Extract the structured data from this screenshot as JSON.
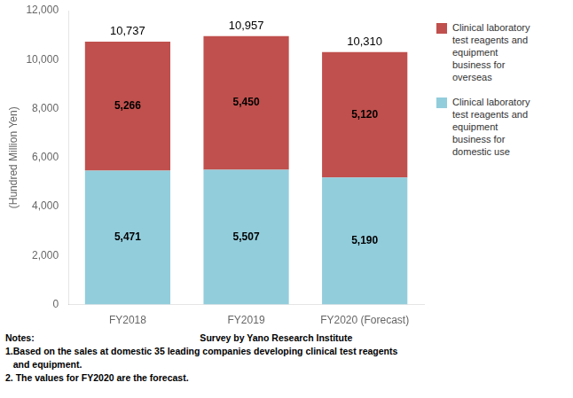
{
  "chart_data": {
    "type": "bar",
    "stacked": true,
    "categories": [
      "FY2018",
      "FY2019",
      "FY2020 (Forecast)"
    ],
    "series": [
      {
        "name": "Clinical laboratory\ntest reagents and\nequipment\nbusiness for\ndomestic use",
        "color": "#92CDDC",
        "values": [
          5471,
          5507,
          5190
        ],
        "value_labels": [
          "5,471",
          "5,507",
          "5,190"
        ]
      },
      {
        "name": "Clinical laboratory\ntest reagents and\nequipment\nbusiness for\noverseas",
        "color": "#C0504D",
        "values": [
          5266,
          5450,
          5120
        ],
        "value_labels": [
          "5,266",
          "5,450",
          "5,120"
        ]
      }
    ],
    "totals": [
      10737,
      10957,
      10310
    ],
    "total_labels": [
      "10,737",
      "10,957",
      "10,310"
    ],
    "data_labels": true,
    "ylabel": "(Hundred Million Yen)",
    "ylim": [
      0,
      12000
    ],
    "yticks": [
      0,
      {
        "value": 2000,
        "label": "2,000"
      },
      {
        "value": 4000,
        "label": "4,000"
      },
      {
        "value": 6000,
        "label": "6,000"
      },
      {
        "value": 8000,
        "label": "8,000"
      },
      {
        "value": 10000,
        "label": "10,000"
      },
      {
        "value": 12000,
        "label": "12,000"
      }
    ],
    "grid": false,
    "legend": "right",
    "notes": [
      "Notes:                                                                Survey by Yano Research Institute",
      "1.Based on the sales at domestic 35 leading companies developing clinical test reagents",
      "   and equipment.",
      "2. The values for FY2020 are the forecast."
    ]
  }
}
